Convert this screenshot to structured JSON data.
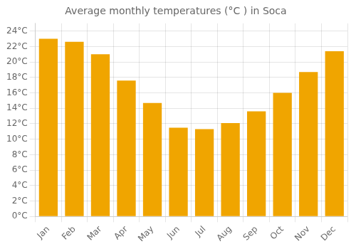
{
  "chart_data": {
    "type": "bar",
    "title": "Average monthly temperatures (°C ) in Soca",
    "categories": [
      "Jan",
      "Feb",
      "Mar",
      "Apr",
      "May",
      "Jun",
      "Jul",
      "Aug",
      "Sep",
      "Oct",
      "Nov",
      "Dec"
    ],
    "values": [
      23.0,
      22.6,
      21.0,
      17.6,
      14.7,
      11.5,
      11.3,
      12.1,
      13.6,
      16.0,
      18.7,
      21.4
    ],
    "color": "#F0A500",
    "ylim": [
      0,
      25
    ],
    "yticks": [
      {
        "value": 0,
        "label": "0°C"
      },
      {
        "value": 2,
        "label": "2°C"
      },
      {
        "value": 4,
        "label": "4°C"
      },
      {
        "value": 6,
        "label": "6°C"
      },
      {
        "value": 8,
        "label": "8°C"
      },
      {
        "value": 10,
        "label": "10°C"
      },
      {
        "value": 12,
        "label": "12°C"
      },
      {
        "value": 14,
        "label": "14°C"
      },
      {
        "value": 16,
        "label": "16°C"
      },
      {
        "value": 18,
        "label": "18°C"
      },
      {
        "value": 20,
        "label": "20°C"
      },
      {
        "value": 22,
        "label": "22°C"
      },
      {
        "value": 24,
        "label": "24°C"
      }
    ],
    "grid": true
  }
}
